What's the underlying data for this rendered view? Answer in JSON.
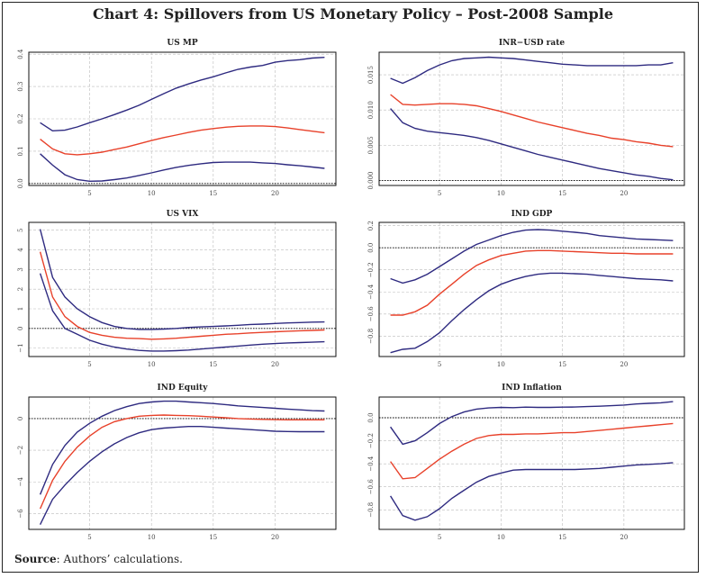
{
  "title": "Chart 4: Spillovers from US Monetary Policy – Post-2008 Sample",
  "source_label": "Source",
  "source_text": ": Authors’ calculations.",
  "colors": {
    "bands": "#2e2a80",
    "response": "#e8412a",
    "grid": "#bbbbbb",
    "zero_line": "#000000"
  },
  "chart_data": [
    {
      "type": "line",
      "title": "US MP",
      "x": [
        1,
        2,
        3,
        4,
        5,
        6,
        7,
        8,
        9,
        10,
        11,
        12,
        13,
        14,
        15,
        16,
        17,
        18,
        19,
        20,
        21,
        22,
        23,
        24
      ],
      "xticks": [
        5,
        10,
        15,
        20
      ],
      "xlim": [
        0.08,
        24.92
      ],
      "yticks": [
        0.0,
        0.1,
        0.2,
        0.3,
        0.4
      ],
      "ytick_labels": [
        "0.0",
        "0.1",
        "0.2",
        "0.3",
        "0.4"
      ],
      "ylim": [
        -0.006,
        0.406
      ],
      "grid": true,
      "series": [
        {
          "role": "upper",
          "values": [
            0.188,
            0.163,
            0.165,
            0.175,
            0.188,
            0.2,
            0.213,
            0.227,
            0.242,
            0.26,
            0.278,
            0.295,
            0.308,
            0.32,
            0.33,
            0.342,
            0.353,
            0.36,
            0.365,
            0.375,
            0.38,
            0.383,
            0.388,
            0.39
          ]
        },
        {
          "role": "response",
          "values": [
            0.137,
            0.107,
            0.092,
            0.089,
            0.092,
            0.097,
            0.105,
            0.113,
            0.123,
            0.133,
            0.142,
            0.15,
            0.158,
            0.165,
            0.17,
            0.174,
            0.177,
            0.178,
            0.178,
            0.176,
            0.172,
            0.167,
            0.162,
            0.157
          ]
        },
        {
          "role": "lower",
          "values": [
            0.092,
            0.057,
            0.027,
            0.012,
            0.007,
            0.008,
            0.012,
            0.017,
            0.025,
            0.033,
            0.042,
            0.05,
            0.056,
            0.061,
            0.065,
            0.066,
            0.066,
            0.066,
            0.064,
            0.062,
            0.058,
            0.055,
            0.051,
            0.047
          ]
        }
      ]
    },
    {
      "type": "line",
      "title": "INR−USD rate",
      "x": [
        1,
        2,
        3,
        4,
        5,
        6,
        7,
        8,
        9,
        10,
        11,
        12,
        13,
        14,
        15,
        16,
        17,
        18,
        19,
        20,
        21,
        22,
        23,
        24
      ],
      "xticks": [
        5,
        10,
        15,
        20
      ],
      "xlim": [
        0.08,
        24.92
      ],
      "yticks": [
        0,
        0.005,
        0.01,
        0.015
      ],
      "ytick_labels": [
        "0.000",
        "0.005",
        "0.010",
        "0.015"
      ],
      "ylim": [
        -0.0007,
        0.0182
      ],
      "grid": true,
      "series": [
        {
          "role": "upper",
          "values": [
            0.0145,
            0.0138,
            0.0146,
            0.0156,
            0.0164,
            0.017,
            0.0173,
            0.0174,
            0.0175,
            0.0174,
            0.0173,
            0.0171,
            0.0169,
            0.0167,
            0.0165,
            0.0164,
            0.0163,
            0.0163,
            0.0163,
            0.0163,
            0.0163,
            0.0164,
            0.0164,
            0.0167
          ]
        },
        {
          "role": "response",
          "values": [
            0.0122,
            0.0108,
            0.0107,
            0.0108,
            0.0109,
            0.0109,
            0.0108,
            0.0106,
            0.0102,
            0.0098,
            0.0093,
            0.0088,
            0.0083,
            0.0079,
            0.0075,
            0.0071,
            0.0067,
            0.0064,
            0.006,
            0.0058,
            0.0055,
            0.0053,
            0.005,
            0.0048
          ]
        },
        {
          "role": "lower",
          "values": [
            0.0102,
            0.0082,
            0.0074,
            0.007,
            0.0068,
            0.0066,
            0.0064,
            0.0061,
            0.0057,
            0.0052,
            0.0047,
            0.0042,
            0.0037,
            0.0033,
            0.0029,
            0.0025,
            0.0021,
            0.0017,
            0.0014,
            0.0011,
            0.0008,
            0.0006,
            0.0003,
            0.0001
          ]
        }
      ]
    },
    {
      "type": "line",
      "title": "US VIX",
      "x": [
        1,
        2,
        3,
        4,
        5,
        6,
        7,
        8,
        9,
        10,
        11,
        12,
        13,
        14,
        15,
        16,
        17,
        18,
        19,
        20,
        21,
        22,
        23,
        24
      ],
      "xticks": [
        5,
        10,
        15,
        20
      ],
      "xlim": [
        0.08,
        24.92
      ],
      "yticks": [
        -1,
        0,
        1,
        2,
        3,
        4,
        5
      ],
      "ytick_labels": [
        "−1",
        "0",
        "1",
        "2",
        "3",
        "4",
        "5"
      ],
      "ylim": [
        -1.43,
        5.4
      ],
      "grid": true,
      "series": [
        {
          "role": "upper",
          "values": [
            5.05,
            2.6,
            1.6,
            1.0,
            0.6,
            0.3,
            0.1,
            0.0,
            -0.05,
            -0.05,
            -0.03,
            0.0,
            0.05,
            0.08,
            0.1,
            0.13,
            0.16,
            0.2,
            0.22,
            0.25,
            0.28,
            0.3,
            0.32,
            0.33
          ]
        },
        {
          "role": "response",
          "values": [
            3.9,
            1.6,
            0.6,
            0.1,
            -0.2,
            -0.35,
            -0.45,
            -0.5,
            -0.52,
            -0.55,
            -0.53,
            -0.5,
            -0.45,
            -0.4,
            -0.35,
            -0.3,
            -0.27,
            -0.23,
            -0.2,
            -0.17,
            -0.14,
            -0.12,
            -0.1,
            -0.08
          ]
        },
        {
          "role": "lower",
          "values": [
            2.8,
            0.9,
            0.0,
            -0.3,
            -0.6,
            -0.8,
            -0.95,
            -1.05,
            -1.12,
            -1.15,
            -1.15,
            -1.13,
            -1.1,
            -1.05,
            -1.0,
            -0.95,
            -0.9,
            -0.85,
            -0.8,
            -0.77,
            -0.74,
            -0.72,
            -0.7,
            -0.68
          ]
        }
      ]
    },
    {
      "type": "line",
      "title": "IND GDP",
      "x": [
        1,
        2,
        3,
        4,
        5,
        6,
        7,
        8,
        9,
        10,
        11,
        12,
        13,
        14,
        15,
        16,
        17,
        18,
        19,
        20,
        21,
        22,
        23,
        24
      ],
      "xticks": [
        5,
        10,
        15,
        20
      ],
      "xlim": [
        0.08,
        24.92
      ],
      "yticks": [
        -0.8,
        -0.6,
        -0.4,
        -0.2,
        0.0,
        0.2
      ],
      "ytick_labels": [
        "−0.8",
        "−0.6",
        "−0.4",
        "−0.2",
        "0.0",
        "0.2"
      ],
      "ylim": [
        -0.985,
        0.23
      ],
      "grid": true,
      "series": [
        {
          "role": "upper",
          "values": [
            -0.28,
            -0.32,
            -0.29,
            -0.24,
            -0.17,
            -0.1,
            -0.03,
            0.03,
            0.07,
            0.11,
            0.14,
            0.16,
            0.165,
            0.16,
            0.15,
            0.14,
            0.13,
            0.11,
            0.1,
            0.09,
            0.08,
            0.075,
            0.07,
            0.065
          ]
        },
        {
          "role": "response",
          "values": [
            -0.61,
            -0.61,
            -0.58,
            -0.52,
            -0.42,
            -0.33,
            -0.24,
            -0.16,
            -0.11,
            -0.07,
            -0.05,
            -0.03,
            -0.025,
            -0.025,
            -0.03,
            -0.035,
            -0.04,
            -0.045,
            -0.05,
            -0.05,
            -0.055,
            -0.055,
            -0.055,
            -0.055
          ]
        },
        {
          "role": "lower",
          "values": [
            -0.95,
            -0.92,
            -0.91,
            -0.85,
            -0.77,
            -0.66,
            -0.56,
            -0.47,
            -0.39,
            -0.33,
            -0.29,
            -0.26,
            -0.24,
            -0.23,
            -0.23,
            -0.235,
            -0.24,
            -0.25,
            -0.26,
            -0.27,
            -0.28,
            -0.285,
            -0.29,
            -0.3
          ]
        }
      ]
    },
    {
      "type": "line",
      "title": "IND Equity",
      "x": [
        1,
        2,
        3,
        4,
        5,
        6,
        7,
        8,
        9,
        10,
        11,
        12,
        13,
        14,
        15,
        16,
        17,
        18,
        19,
        20,
        21,
        22,
        23,
        24
      ],
      "xticks": [
        5,
        10,
        15,
        20
      ],
      "xlim": [
        0.08,
        24.92
      ],
      "yticks": [
        -6,
        -4,
        -2,
        0
      ],
      "ytick_labels": [
        "−6",
        "−4",
        "−2",
        "0"
      ],
      "ylim": [
        -7.0,
        1.36
      ],
      "grid": true,
      "series": [
        {
          "role": "upper",
          "values": [
            -4.8,
            -2.9,
            -1.7,
            -0.85,
            -0.3,
            0.15,
            0.5,
            0.75,
            0.95,
            1.05,
            1.1,
            1.1,
            1.05,
            1.0,
            0.95,
            0.88,
            0.8,
            0.75,
            0.7,
            0.65,
            0.6,
            0.55,
            0.5,
            0.48
          ]
        },
        {
          "role": "response",
          "values": [
            -5.7,
            -3.9,
            -2.7,
            -1.8,
            -1.1,
            -0.55,
            -0.2,
            0.0,
            0.15,
            0.2,
            0.22,
            0.2,
            0.18,
            0.15,
            0.1,
            0.05,
            0.0,
            -0.03,
            -0.05,
            -0.07,
            -0.08,
            -0.08,
            -0.08,
            -0.08
          ]
        },
        {
          "role": "lower",
          "values": [
            -6.7,
            -5.1,
            -4.2,
            -3.4,
            -2.7,
            -2.1,
            -1.6,
            -1.2,
            -0.9,
            -0.7,
            -0.6,
            -0.55,
            -0.5,
            -0.5,
            -0.55,
            -0.6,
            -0.65,
            -0.7,
            -0.75,
            -0.8,
            -0.82,
            -0.83,
            -0.83,
            -0.83
          ]
        }
      ]
    },
    {
      "type": "line",
      "title": "IND Inflation",
      "x": [
        1,
        2,
        3,
        4,
        5,
        6,
        7,
        8,
        9,
        10,
        11,
        12,
        13,
        14,
        15,
        16,
        17,
        18,
        19,
        20,
        21,
        22,
        23,
        24
      ],
      "xticks": [
        5,
        10,
        15,
        20
      ],
      "xlim": [
        0.08,
        24.92
      ],
      "yticks": [
        -0.8,
        -0.6,
        -0.4,
        -0.2,
        0.0
      ],
      "ytick_labels": [
        "−0.8",
        "−0.6",
        "−0.4",
        "−0.2",
        "0.0"
      ],
      "ylim": [
        -0.97,
        0.18
      ],
      "grid": true,
      "series": [
        {
          "role": "upper",
          "values": [
            -0.08,
            -0.23,
            -0.2,
            -0.13,
            -0.05,
            0.01,
            0.05,
            0.075,
            0.085,
            0.09,
            0.088,
            0.092,
            0.09,
            0.09,
            0.092,
            0.093,
            0.097,
            0.1,
            0.105,
            0.11,
            0.12,
            0.125,
            0.13,
            0.14
          ]
        },
        {
          "role": "response",
          "values": [
            -0.38,
            -0.53,
            -0.52,
            -0.44,
            -0.36,
            -0.29,
            -0.23,
            -0.18,
            -0.155,
            -0.145,
            -0.145,
            -0.14,
            -0.14,
            -0.135,
            -0.13,
            -0.13,
            -0.12,
            -0.11,
            -0.1,
            -0.09,
            -0.08,
            -0.07,
            -0.06,
            -0.05
          ]
        },
        {
          "role": "lower",
          "values": [
            -0.68,
            -0.85,
            -0.89,
            -0.86,
            -0.79,
            -0.7,
            -0.63,
            -0.56,
            -0.51,
            -0.48,
            -0.455,
            -0.45,
            -0.45,
            -0.45,
            -0.45,
            -0.45,
            -0.445,
            -0.44,
            -0.43,
            -0.42,
            -0.41,
            -0.405,
            -0.4,
            -0.39
          ]
        }
      ]
    }
  ]
}
